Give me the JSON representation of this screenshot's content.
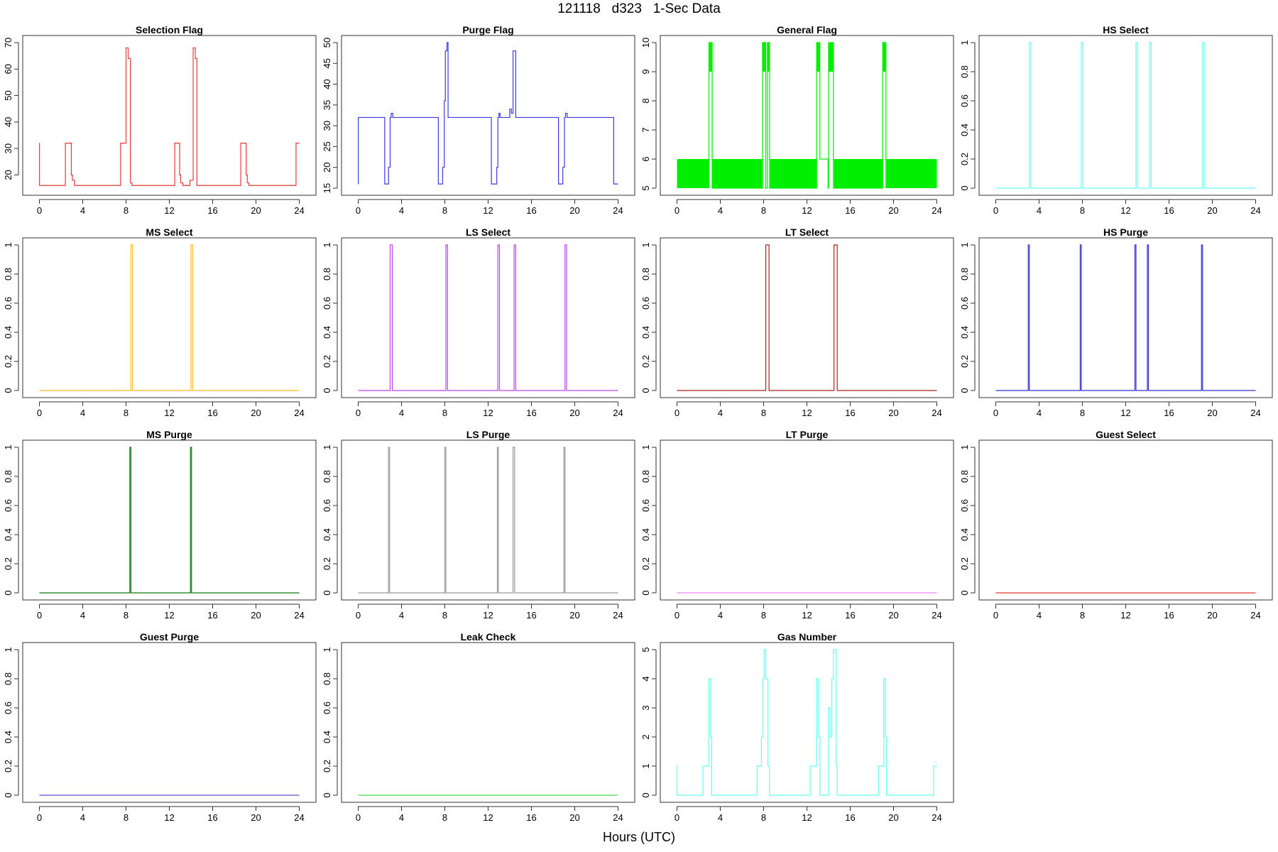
{
  "page": {
    "title": "121118   d323   1-Sec Data",
    "xlabel": "Hours (UTC)"
  },
  "chart_data": [
    {
      "type": "line",
      "title": "Selection Flag",
      "color": "#e8393a",
      "xlim": [
        0,
        24
      ],
      "ylim": [
        15,
        70
      ],
      "xticks": [
        0,
        4,
        8,
        12,
        16,
        20,
        24
      ],
      "yticks": [
        20,
        30,
        40,
        50,
        60,
        70
      ],
      "series": [
        {
          "x": [
            0,
            0.01,
            0.01,
            2.4,
            2.4,
            2.95,
            2.95,
            3.05,
            3.05,
            3.25,
            3.25,
            7.5,
            7.5,
            8.0,
            8.0,
            8.2,
            8.2,
            8.4,
            8.4,
            8.55,
            8.55,
            12.5,
            12.5,
            12.95,
            12.95,
            13.05,
            13.05,
            13.25,
            13.25,
            13.9,
            13.9,
            14.2,
            14.2,
            14.4,
            14.4,
            14.55,
            14.55,
            18.6,
            18.6,
            19.1,
            19.1,
            19.2,
            19.2,
            19.35,
            19.35,
            23.7,
            23.7,
            24
          ],
          "y": [
            32,
            32,
            16,
            16,
            32,
            32,
            20,
            20,
            18,
            18,
            16,
            16,
            32,
            32,
            68,
            68,
            64,
            64,
            17,
            17,
            16,
            16,
            32,
            32,
            20,
            20,
            17,
            17,
            16,
            16,
            18,
            18,
            68,
            68,
            64,
            64,
            16,
            16,
            32,
            32,
            20,
            20,
            17,
            17,
            16,
            16,
            32,
            32
          ]
        }
      ]
    },
    {
      "type": "line",
      "title": "Purge Flag",
      "color": "#3a3ae8",
      "xlim": [
        0,
        24
      ],
      "ylim": [
        15,
        50
      ],
      "xticks": [
        0,
        4,
        8,
        12,
        16,
        20,
        24
      ],
      "yticks": [
        15,
        20,
        25,
        30,
        35,
        40,
        45,
        50
      ],
      "series": [
        {
          "x": [
            0,
            0.01,
            0.01,
            2.45,
            2.45,
            2.8,
            2.8,
            2.95,
            2.95,
            3.05,
            3.05,
            3.2,
            3.2,
            7.4,
            7.4,
            7.8,
            7.8,
            7.95,
            7.95,
            8.05,
            8.05,
            8.2,
            8.2,
            8.3,
            8.3,
            8.45,
            8.45,
            12.3,
            12.3,
            12.8,
            12.8,
            12.9,
            12.9,
            13.0,
            13.0,
            13.1,
            13.1,
            14.0,
            14.0,
            14.15,
            14.15,
            14.3,
            14.3,
            14.55,
            14.55,
            15.0,
            15.0,
            18.5,
            18.5,
            18.9,
            18.9,
            19.05,
            19.05,
            19.15,
            19.15,
            19.3,
            19.3,
            23.6,
            23.6,
            24
          ],
          "y": [
            16,
            16,
            32,
            32,
            16,
            16,
            20,
            20,
            32,
            32,
            33,
            33,
            32,
            32,
            16,
            16,
            20,
            20,
            36,
            36,
            48,
            48,
            50,
            50,
            32,
            32,
            32,
            32,
            16,
            16,
            20,
            20,
            32,
            32,
            33,
            33,
            32,
            32,
            34,
            34,
            33,
            33,
            48,
            48,
            32,
            32,
            32,
            32,
            16,
            16,
            20,
            20,
            32,
            32,
            33,
            33,
            32,
            32,
            16,
            16
          ]
        }
      ]
    },
    {
      "type": "area",
      "title": "General Flag",
      "color": "#00ee00",
      "xlim": [
        0,
        24
      ],
      "ylim": [
        5,
        10
      ],
      "xticks": [
        0,
        4,
        8,
        12,
        16,
        20,
        24
      ],
      "yticks": [
        5,
        6,
        7,
        8,
        9,
        10
      ],
      "bands": [
        {
          "x0": 0,
          "x1": 2.95,
          "y0": 5,
          "y1": 6
        },
        {
          "x0": 3.25,
          "x1": 7.9,
          "y0": 5,
          "y1": 6
        },
        {
          "x0": 8.6,
          "x1": 12.9,
          "y0": 5,
          "y1": 6
        },
        {
          "x0": 14.5,
          "x1": 19.0,
          "y0": 5,
          "y1": 6
        },
        {
          "x0": 19.35,
          "x1": 24,
          "y0": 5,
          "y1": 6
        },
        {
          "x0": 2.95,
          "x1": 3.25,
          "y0": 9,
          "y1": 10
        },
        {
          "x0": 7.9,
          "x1": 8.2,
          "y0": 9,
          "y1": 10
        },
        {
          "x0": 8.35,
          "x1": 8.55,
          "y0": 9,
          "y1": 10
        },
        {
          "x0": 12.9,
          "x1": 13.2,
          "y0": 9,
          "y1": 10
        },
        {
          "x0": 14.0,
          "x1": 14.45,
          "y0": 9,
          "y1": 10
        },
        {
          "x0": 19.0,
          "x1": 19.3,
          "y0": 9,
          "y1": 10
        }
      ],
      "series": [
        {
          "x": [
            2.95,
            2.95,
            3.25,
            3.25,
            7.9,
            7.9,
            8.2,
            8.2,
            8.35,
            8.35,
            8.55,
            8.55,
            12.9,
            12.9,
            13.2,
            13.2,
            13.95,
            13.95,
            14.0,
            14.0,
            14.45,
            14.45,
            19.0,
            19.0,
            19.3,
            19.3
          ],
          "y": [
            5,
            10,
            10,
            5,
            5,
            10,
            10,
            5,
            5,
            10,
            10,
            5,
            5,
            10,
            10,
            6,
            6,
            5,
            5,
            10,
            10,
            5,
            5,
            10,
            10,
            5
          ]
        }
      ]
    },
    {
      "type": "line",
      "title": "HS Select",
      "color": "#66ffee",
      "xlim": [
        0,
        24
      ],
      "ylim": [
        0,
        1
      ],
      "xticks": [
        0,
        4,
        8,
        12,
        16,
        20,
        24
      ],
      "yticks": [
        0,
        0.2,
        0.4,
        0.6,
        0.8,
        1
      ],
      "series": [
        {
          "x": [
            0,
            3.1,
            3.1,
            3.25,
            3.25,
            7.9,
            7.9,
            8.05,
            8.05,
            12.95,
            12.95,
            13.1,
            13.1,
            14.2,
            14.2,
            14.35,
            14.35,
            19.1,
            19.1,
            19.25,
            19.25,
            24
          ],
          "y": [
            0,
            0,
            1,
            1,
            0,
            0,
            1,
            1,
            0,
            0,
            1,
            1,
            0,
            0,
            1,
            1,
            0,
            0,
            1,
            1,
            0,
            0
          ]
        }
      ]
    },
    {
      "type": "line",
      "title": "MS Select",
      "color": "#ffbb22",
      "xlim": [
        0,
        24
      ],
      "ylim": [
        0,
        1
      ],
      "xticks": [
        0,
        4,
        8,
        12,
        16,
        20,
        24
      ],
      "yticks": [
        0,
        0.2,
        0.4,
        0.6,
        0.8,
        1
      ],
      "series": [
        {
          "x": [
            0,
            8.45,
            8.45,
            8.6,
            8.6,
            14.0,
            14.0,
            14.15,
            14.15,
            24
          ],
          "y": [
            0,
            0,
            1,
            1,
            0,
            0,
            1,
            1,
            0,
            0
          ]
        }
      ]
    },
    {
      "type": "line",
      "title": "LS Select",
      "color": "#bb44ee",
      "xlim": [
        0,
        24
      ],
      "ylim": [
        0,
        1
      ],
      "xticks": [
        0,
        4,
        8,
        12,
        16,
        20,
        24
      ],
      "yticks": [
        0,
        0.2,
        0.4,
        0.6,
        0.8,
        1
      ],
      "series": [
        {
          "x": [
            0,
            2.95,
            2.95,
            3.15,
            3.15,
            8.1,
            8.1,
            8.25,
            8.25,
            12.9,
            12.9,
            13.05,
            13.05,
            14.4,
            14.4,
            14.55,
            14.55,
            19.1,
            19.1,
            19.25,
            19.25,
            24
          ],
          "y": [
            0,
            0,
            1,
            1,
            0,
            0,
            1,
            1,
            0,
            0,
            1,
            1,
            0,
            0,
            1,
            1,
            0,
            0,
            1,
            1,
            0,
            0
          ]
        }
      ]
    },
    {
      "type": "line",
      "title": "LT Select",
      "color": "#aa2222",
      "xlim": [
        0,
        24
      ],
      "ylim": [
        0,
        1
      ],
      "xticks": [
        0,
        4,
        8,
        12,
        16,
        20,
        24
      ],
      "yticks": [
        0,
        0.2,
        0.4,
        0.6,
        0.8,
        1
      ],
      "series": [
        {
          "x": [
            0,
            8.2,
            8.2,
            8.5,
            8.5,
            14.5,
            14.5,
            14.8,
            14.8,
            24
          ],
          "y": [
            0,
            0,
            1,
            1,
            0,
            0,
            1,
            1,
            0,
            0
          ]
        }
      ]
    },
    {
      "type": "line",
      "title": "HS Purge",
      "color": "#3333cc",
      "xlim": [
        0,
        24
      ],
      "ylim": [
        0,
        1
      ],
      "xticks": [
        0,
        4,
        8,
        12,
        16,
        20,
        24
      ],
      "yticks": [
        0,
        0.2,
        0.4,
        0.6,
        0.8,
        1
      ],
      "series": [
        {
          "x": [
            0,
            3.0,
            3.0,
            3.1,
            3.1,
            7.8,
            7.8,
            7.9,
            7.9,
            12.85,
            12.85,
            12.95,
            12.95,
            14.0,
            14.0,
            14.1,
            14.1,
            19.0,
            19.0,
            19.1,
            19.1,
            24
          ],
          "y": [
            0,
            0,
            1,
            1,
            0,
            0,
            1,
            1,
            0,
            0,
            1,
            1,
            0,
            0,
            1,
            1,
            0,
            0,
            1,
            1,
            0,
            0
          ]
        }
      ]
    },
    {
      "type": "line",
      "title": "MS Purge",
      "color": "#117711",
      "xlim": [
        0,
        24
      ],
      "ylim": [
        0,
        1
      ],
      "xticks": [
        0,
        4,
        8,
        12,
        16,
        20,
        24
      ],
      "yticks": [
        0,
        0.2,
        0.4,
        0.6,
        0.8,
        1
      ],
      "series": [
        {
          "x": [
            0,
            8.35,
            8.35,
            8.45,
            8.45,
            13.95,
            13.95,
            14.05,
            14.05,
            24
          ],
          "y": [
            0,
            0,
            1,
            1,
            0,
            0,
            1,
            1,
            0,
            0
          ]
        }
      ]
    },
    {
      "type": "line",
      "title": "LS Purge",
      "color": "#999999",
      "xlim": [
        0,
        24
      ],
      "ylim": [
        0,
        1
      ],
      "xticks": [
        0,
        4,
        8,
        12,
        16,
        20,
        24
      ],
      "yticks": [
        0,
        0.2,
        0.4,
        0.6,
        0.8,
        1
      ],
      "series": [
        {
          "x": [
            0,
            2.8,
            2.8,
            2.9,
            2.9,
            8.0,
            8.0,
            8.1,
            8.1,
            12.85,
            12.85,
            12.95,
            12.95,
            14.3,
            14.3,
            14.45,
            14.45,
            19.0,
            19.0,
            19.1,
            19.1,
            24
          ],
          "y": [
            0,
            0,
            1,
            1,
            0,
            0,
            1,
            1,
            0,
            0,
            1,
            1,
            0,
            0,
            1,
            1,
            0,
            0,
            1,
            1,
            0,
            0
          ]
        }
      ]
    },
    {
      "type": "line",
      "title": "LT Purge",
      "color": "#ee88ee",
      "xlim": [
        0,
        24
      ],
      "ylim": [
        0,
        1
      ],
      "xticks": [
        0,
        4,
        8,
        12,
        16,
        20,
        24
      ],
      "yticks": [
        0,
        0.2,
        0.4,
        0.6,
        0.8,
        1
      ],
      "series": [
        {
          "x": [
            0,
            24
          ],
          "y": [
            0,
            0
          ]
        }
      ]
    },
    {
      "type": "line",
      "title": "Guest Select",
      "color": "#ee3333",
      "xlim": [
        0,
        24
      ],
      "ylim": [
        0,
        1
      ],
      "xticks": [
        0,
        4,
        8,
        12,
        16,
        20,
        24
      ],
      "yticks": [
        0,
        0.2,
        0.4,
        0.6,
        0.8,
        1
      ],
      "series": [
        {
          "x": [
            0,
            24
          ],
          "y": [
            0,
            0
          ]
        }
      ]
    },
    {
      "type": "line",
      "title": "Guest Purge",
      "color": "#5555cc",
      "xlim": [
        0,
        24
      ],
      "ylim": [
        0,
        1
      ],
      "xticks": [
        0,
        4,
        8,
        12,
        16,
        20,
        24
      ],
      "yticks": [
        0,
        0.2,
        0.4,
        0.6,
        0.8,
        1
      ],
      "series": [
        {
          "x": [
            0,
            24
          ],
          "y": [
            0,
            0
          ]
        }
      ]
    },
    {
      "type": "line",
      "title": "Leak Check",
      "color": "#55dd55",
      "xlim": [
        0,
        24
      ],
      "ylim": [
        0,
        1
      ],
      "xticks": [
        0,
        4,
        8,
        12,
        16,
        20,
        24
      ],
      "yticks": [
        0,
        0.2,
        0.4,
        0.6,
        0.8,
        1
      ],
      "series": [
        {
          "x": [
            0,
            24
          ],
          "y": [
            0,
            0
          ]
        }
      ]
    },
    {
      "type": "line",
      "title": "Gas Number",
      "color": "#66ffee",
      "xlim": [
        0,
        24
      ],
      "ylim": [
        0,
        5
      ],
      "xticks": [
        0,
        4,
        8,
        12,
        16,
        20,
        24
      ],
      "yticks": [
        0,
        1,
        2,
        3,
        4,
        5
      ],
      "series": [
        {
          "x": [
            0,
            0.01,
            0.01,
            2.4,
            2.4,
            2.8,
            2.8,
            2.95,
            2.95,
            3.1,
            3.1,
            3.2,
            3.2,
            7.4,
            7.4,
            7.8,
            7.8,
            7.95,
            7.95,
            8.05,
            8.05,
            8.2,
            8.2,
            8.4,
            8.4,
            8.55,
            8.55,
            12.3,
            12.3,
            12.8,
            12.8,
            12.9,
            12.9,
            13.05,
            13.05,
            13.2,
            13.2,
            14.0,
            14.0,
            14.15,
            14.15,
            14.3,
            14.3,
            14.45,
            14.45,
            14.7,
            14.7,
            14.8,
            14.8,
            18.6,
            18.6,
            19.0,
            19.0,
            19.1,
            19.1,
            19.25,
            19.25,
            19.35,
            19.35,
            23.7,
            23.7,
            24
          ],
          "y": [
            1,
            1,
            0,
            0,
            1,
            1,
            1,
            1,
            4,
            4,
            2,
            2,
            0,
            0,
            1,
            1,
            2,
            2,
            4,
            4,
            5,
            5,
            4,
            4,
            1,
            1,
            0,
            0,
            1,
            1,
            1,
            1,
            4,
            4,
            2,
            2,
            0,
            0,
            3,
            3,
            2,
            2,
            4,
            4,
            5,
            5,
            1,
            1,
            0,
            0,
            1,
            1,
            1,
            1,
            4,
            4,
            2,
            2,
            0,
            0,
            1,
            1
          ]
        }
      ]
    }
  ]
}
